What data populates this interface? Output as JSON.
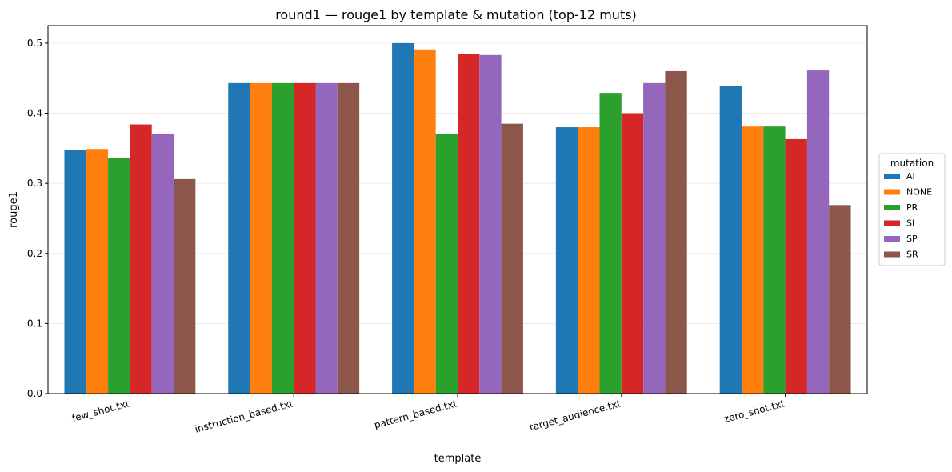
{
  "chart_data": {
    "type": "bar",
    "title": "round1 — rouge1 by template & mutation (top-12 muts)",
    "xlabel": "template",
    "ylabel": "rouge1",
    "ylim": [
      0,
      0.525
    ],
    "yticks": [
      "0.0",
      "0.1",
      "0.2",
      "0.3",
      "0.4",
      "0.5"
    ],
    "grid": "horizontal",
    "legend_position": "right",
    "legend_title": "mutation",
    "categories": [
      "few_shot.txt",
      "instruction_based.txt",
      "pattern_based.txt",
      "target_audience.txt",
      "zero_shot.txt"
    ],
    "series": [
      {
        "name": "AI",
        "color": "#1f77b4",
        "values": [
          0.348,
          0.443,
          0.5,
          0.38,
          0.439
        ]
      },
      {
        "name": "NONE",
        "color": "#ff7f0e",
        "values": [
          0.349,
          0.443,
          0.491,
          0.38,
          0.381
        ]
      },
      {
        "name": "PR",
        "color": "#2ca02c",
        "values": [
          0.336,
          0.443,
          0.37,
          0.429,
          0.381
        ]
      },
      {
        "name": "SI",
        "color": "#d62728",
        "values": [
          0.384,
          0.443,
          0.484,
          0.4,
          0.363
        ]
      },
      {
        "name": "SP",
        "color": "#9467bd",
        "values": [
          0.371,
          0.443,
          0.483,
          0.443,
          0.461
        ]
      },
      {
        "name": "SR",
        "color": "#8c564b",
        "values": [
          0.306,
          0.443,
          0.385,
          0.46,
          0.269
        ]
      }
    ]
  }
}
